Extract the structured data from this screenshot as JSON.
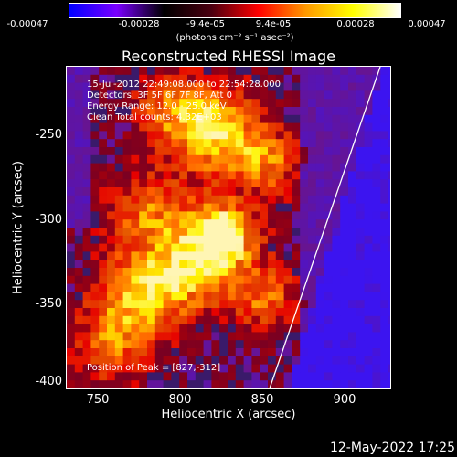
{
  "colorbar": {
    "ticks": [
      "-0.00047",
      "-0.00028",
      "-9.4e-05",
      "9.4e-05",
      "0.00028",
      "0.00047"
    ],
    "units": "(photons cm⁻² s⁻¹ asec⁻²)",
    "colors": [
      "#0000ff",
      "#7a00ff",
      "#000000",
      "#4a0010",
      "#ff0000",
      "#ff9900",
      "#ffff00",
      "#ffffff"
    ]
  },
  "title": "Reconstructed RHESSI Image",
  "annotations": {
    "time": "15-Jul-2012 22:49:08.000 to 22:54:28.000",
    "detectors": "Detectors: 3F 5F 6F 7F 8F, Att 0",
    "energy": "Energy Range: 12.0 - 25.0 keV",
    "clean": "Clean     Total counts: 4.32E+03",
    "peak": "Position of Peak = [827,-312]"
  },
  "axes": {
    "xlabel": "Heliocentric X (arcsec)",
    "ylabel": "Heliocentric Y (arcsec)",
    "xticks": [
      "750",
      "800",
      "850",
      "900"
    ],
    "yticks": [
      "-250",
      "-300",
      "-350",
      "-400"
    ],
    "xlim": [
      732,
      928
    ],
    "ylim": [
      -403,
      -208
    ]
  },
  "peak": {
    "x": 827,
    "y": -312
  },
  "limb_color": "#ffffff",
  "datestamp": "12-May-2022 17:25"
}
